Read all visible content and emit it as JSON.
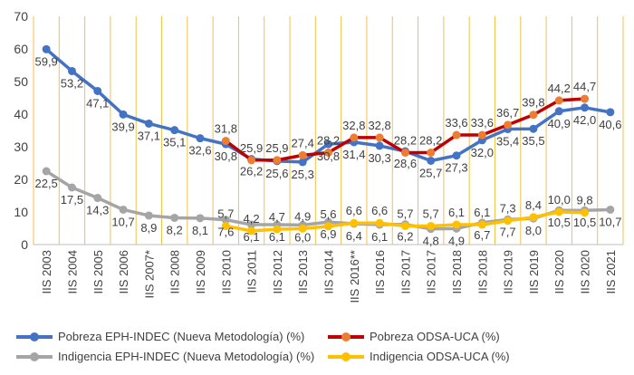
{
  "chart_data": {
    "type": "line",
    "title": "",
    "xlabel": "",
    "ylabel": "",
    "ylim": [
      0,
      70
    ],
    "yticks": [
      "0",
      "10",
      "20",
      "30",
      "40",
      "50",
      "60",
      "70"
    ],
    "grid": "vertical",
    "legend_position": "bottom",
    "categories": [
      "IIS 2003",
      "IIS 2004",
      "IIS 2005",
      "IIS 2006",
      "IIS 2007*",
      "IIS 2008",
      "IIS 2009",
      "IIS 2010",
      "IIS 2011",
      "IIS 2012",
      "IIS 2013",
      "IIS 2014",
      "IIS 2016**",
      "IIS 2016",
      "IIS 2017",
      "IIS 2017",
      "IIS 2018",
      "IIS 2018",
      "IIS 2019",
      "IIS 2019",
      "IIS 2020",
      "IIS 2020",
      "IIS 2021"
    ],
    "series": [
      {
        "name": "Pobreza EPH-INDEC (Nueva Metodología) (%)",
        "color": "#4472c4",
        "marker_color": "#4472c4",
        "label_position": "below",
        "values": [
          59.9,
          53.2,
          47.1,
          39.9,
          37.1,
          35.1,
          32.6,
          30.8,
          26.2,
          25.6,
          25.3,
          30.8,
          31.4,
          30.3,
          28.6,
          25.7,
          27.3,
          32.0,
          35.4,
          35.5,
          40.9,
          42.0,
          40.6
        ],
        "labels": [
          "59,9",
          "53,2",
          "47,1",
          "39,9",
          "37,1",
          "35,1",
          "32,6",
          "30,8",
          "26,2",
          "25,6",
          "25,3",
          "30,8",
          "31,4",
          "30,3",
          "28,6",
          "25,7",
          "27,3",
          "32,0",
          "35,4",
          "35,5",
          "40,9",
          "42,0",
          "40,6"
        ]
      },
      {
        "name": "Pobreza ODSA-UCA (%)",
        "color": "#c00000",
        "marker_color": "#ed7d31",
        "label_position": "above",
        "values": [
          null,
          null,
          null,
          null,
          null,
          null,
          null,
          31.8,
          25.9,
          25.9,
          27.4,
          28.2,
          32.8,
          32.8,
          28.2,
          28.2,
          33.6,
          33.6,
          36.7,
          39.8,
          44.2,
          44.7,
          null
        ],
        "labels": [
          null,
          null,
          null,
          null,
          null,
          null,
          null,
          "31,8",
          "25,9",
          "25,9",
          "27,4",
          "28,2",
          "32,8",
          "32,8",
          "28,2",
          "28,2",
          "33,6",
          "33,6",
          "36,7",
          "39,8",
          "44,2",
          "44,7",
          null
        ]
      },
      {
        "name": "Indigencia EPH-INDEC (Nueva Metodología) (%)",
        "color": "#a5a5a5",
        "marker_color": "#a5a5a5",
        "label_position": "below",
        "values": [
          22.5,
          17.5,
          14.3,
          10.7,
          8.9,
          8.2,
          8.1,
          7.6,
          6.1,
          6.1,
          6.0,
          6.9,
          6.4,
          6.1,
          6.2,
          4.8,
          4.9,
          6.7,
          7.7,
          8.0,
          10.5,
          10.5,
          10.7
        ],
        "labels": [
          "22,5",
          "17,5",
          "14,3",
          "10,7",
          "8,9",
          "8,2",
          "8,1",
          "7,6",
          "6,1",
          "6,1",
          "6,0",
          "6,9",
          "6,4",
          "6,1",
          "6,2",
          "4,8",
          "4,9",
          "6,7",
          "7,7",
          "8,0",
          "10,5",
          "10,5",
          "10,7"
        ]
      },
      {
        "name": "Indigencia ODSA-UCA (%)",
        "color": "#ffc000",
        "marker_color": "#ffc000",
        "label_position": "above",
        "values": [
          null,
          null,
          null,
          null,
          null,
          null,
          null,
          5.7,
          4.2,
          4.7,
          4.9,
          5.6,
          6.6,
          6.6,
          5.7,
          5.7,
          6.1,
          6.1,
          7.3,
          8.4,
          10.0,
          9.8,
          null
        ],
        "labels": [
          null,
          null,
          null,
          null,
          null,
          null,
          null,
          "5,7",
          "4,2",
          "4,7",
          "4,9",
          "5,6",
          "6,6",
          "6,6",
          "5,7",
          "5,7",
          "6,1",
          "6,1",
          "7,3",
          "8,4",
          "10,0",
          "9,8",
          null
        ]
      }
    ]
  }
}
